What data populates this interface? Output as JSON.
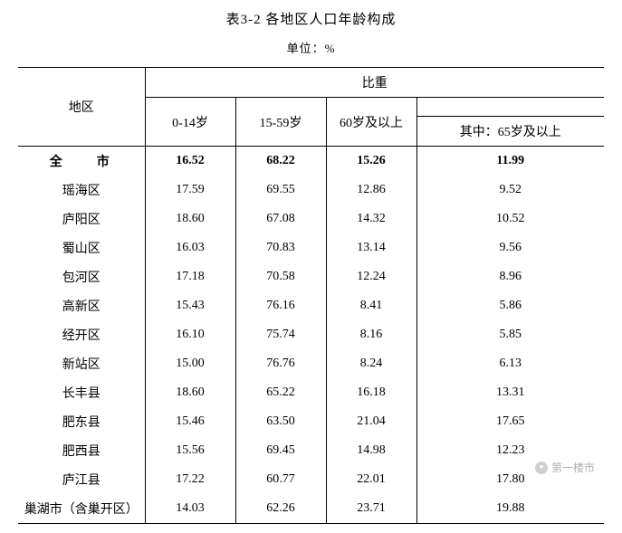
{
  "title": "表3-2  各地区人口年龄构成",
  "unit": "单位：%",
  "headers": {
    "region": "地区",
    "proportion": "比重",
    "age0_14": "0-14岁",
    "age15_59": "15-59岁",
    "age60plus": "60岁及以上",
    "age65plus": "其中：65岁及以上"
  },
  "total": {
    "region": "全　市",
    "v1": "16.52",
    "v2": "68.22",
    "v3": "15.26",
    "v4": "11.99"
  },
  "rows": [
    {
      "region": "瑶海区",
      "v1": "17.59",
      "v2": "69.55",
      "v3": "12.86",
      "v4": "9.52"
    },
    {
      "region": "庐阳区",
      "v1": "18.60",
      "v2": "67.08",
      "v3": "14.32",
      "v4": "10.52"
    },
    {
      "region": "蜀山区",
      "v1": "16.03",
      "v2": "70.83",
      "v3": "13.14",
      "v4": "9.56"
    },
    {
      "region": "包河区",
      "v1": "17.18",
      "v2": "70.58",
      "v3": "12.24",
      "v4": "8.96"
    },
    {
      "region": "高新区",
      "v1": "15.43",
      "v2": "76.16",
      "v3": "8.41",
      "v4": "5.86"
    },
    {
      "region": "经开区",
      "v1": "16.10",
      "v2": "75.74",
      "v3": "8.16",
      "v4": "5.85"
    },
    {
      "region": "新站区",
      "v1": "15.00",
      "v2": "76.76",
      "v3": "8.24",
      "v4": "6.13"
    },
    {
      "region": "长丰县",
      "v1": "18.60",
      "v2": "65.22",
      "v3": "16.18",
      "v4": "13.31"
    },
    {
      "region": "肥东县",
      "v1": "15.46",
      "v2": "63.50",
      "v3": "21.04",
      "v4": "17.65"
    },
    {
      "region": "肥西县",
      "v1": "15.56",
      "v2": "69.45",
      "v3": "14.98",
      "v4": "12.23"
    },
    {
      "region": "庐江县",
      "v1": "17.22",
      "v2": "60.77",
      "v3": "22.01",
      "v4": "17.80"
    },
    {
      "region": "巢湖市（含巢开区）",
      "v1": "14.03",
      "v2": "62.26",
      "v3": "23.71",
      "v4": "19.88"
    }
  ],
  "watermark": "第一楼市"
}
